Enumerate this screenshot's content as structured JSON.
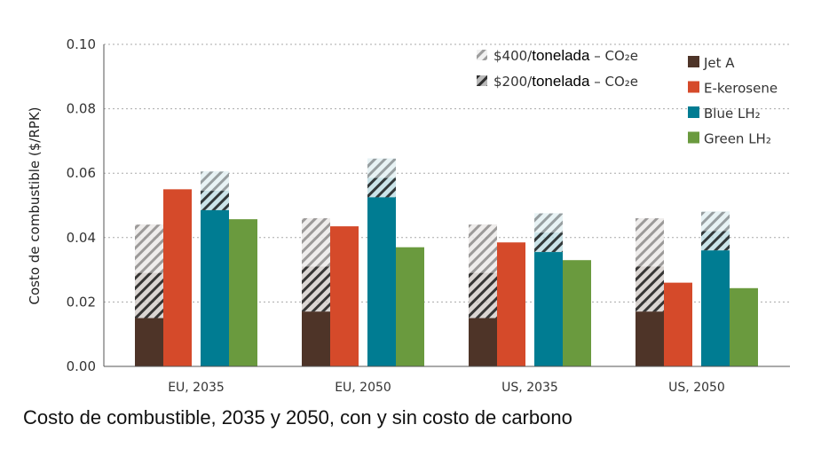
{
  "chart_data": {
    "type": "bar",
    "stacked": true,
    "ylabel": "Costo de combustible ($/RPK)",
    "ylim": [
      0,
      0.1
    ],
    "yticks": [
      "0.00",
      "0.02",
      "0.04",
      "0.06",
      "0.08",
      "0.10"
    ],
    "grid": true,
    "legend_position": "top-right",
    "categories": [
      "EU, 2035",
      "EU, 2050",
      "US, 2035",
      "US, 2050"
    ],
    "fuels": [
      {
        "name": "Jet A",
        "color": "#4e3428",
        "base": [
          0.015,
          0.017,
          0.015,
          0.017
        ],
        "with_200": [
          0.029,
          0.031,
          0.029,
          0.031
        ],
        "with_400": [
          0.044,
          0.046,
          0.044,
          0.046
        ]
      },
      {
        "name": "E-kerosene",
        "color": "#d54a2a",
        "base": [
          0.055,
          0.0435,
          0.0385,
          0.026
        ]
      },
      {
        "name": "Blue LH₂",
        "color": "#007c92",
        "base": [
          0.0485,
          0.0525,
          0.0355,
          0.036
        ],
        "with_200": [
          0.0545,
          0.0585,
          0.0415,
          0.042
        ],
        "with_400": [
          0.0605,
          0.0645,
          0.0475,
          0.048
        ]
      },
      {
        "name": "Green LH₂",
        "color": "#6a9a3e",
        "base": [
          0.0457,
          0.037,
          0.033,
          0.0243
        ]
      }
    ],
    "carbon_legend": [
      {
        "prefix": "$400/",
        "word": "tonelada",
        "suffix": " – CO₂e"
      },
      {
        "prefix": "$200/",
        "word": "tonelada",
        "suffix": " – CO₂e"
      }
    ]
  },
  "caption": "Costo de combustible, 2035 y 2050, con y sin costo de carbono"
}
